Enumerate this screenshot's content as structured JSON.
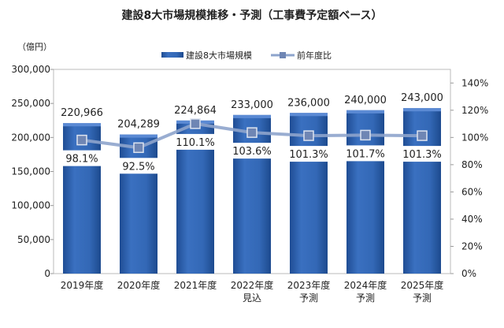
{
  "chart_data": {
    "type": "bar",
    "title": "建設8大市場規模推移・予測（工事費予定額ベース）",
    "ylabel": "（億円）",
    "categories": [
      [
        "2019年度",
        ""
      ],
      [
        "2020年度",
        ""
      ],
      [
        "2021年度",
        ""
      ],
      [
        "2022年度",
        "見込"
      ],
      [
        "2023年度",
        "予測"
      ],
      [
        "2024年度",
        "予測"
      ],
      [
        "2025年度",
        "予測"
      ]
    ],
    "series": [
      {
        "name": "建設8大市場規模",
        "type": "bar",
        "axis": "left",
        "values": [
          220966,
          204289,
          224864,
          233000,
          236000,
          240000,
          243000
        ],
        "labels": [
          "220,966",
          "204,289",
          "224,864",
          "233,000",
          "236,000",
          "240,000",
          "243,000"
        ],
        "color": "#2f64b0"
      },
      {
        "name": "前年度比",
        "type": "line",
        "axis": "right",
        "values": [
          98.1,
          92.5,
          110.1,
          103.6,
          101.3,
          101.7,
          101.3
        ],
        "labels": [
          "98.1%",
          "92.5%",
          "110.1%",
          "103.6%",
          "101.3%",
          "101.7%",
          "101.3%"
        ],
        "color": "#8ea4cc"
      }
    ],
    "ylim": [
      0,
      300000
    ],
    "yticks": [
      "0",
      "50,000",
      "100,000",
      "150,000",
      "200,000",
      "250,000",
      "300,000"
    ],
    "y2lim": [
      0,
      150
    ],
    "y2ticks": [
      "0%",
      "20%",
      "40%",
      "60%",
      "80%",
      "100%",
      "120%",
      "140%"
    ],
    "legend": "top-center"
  }
}
